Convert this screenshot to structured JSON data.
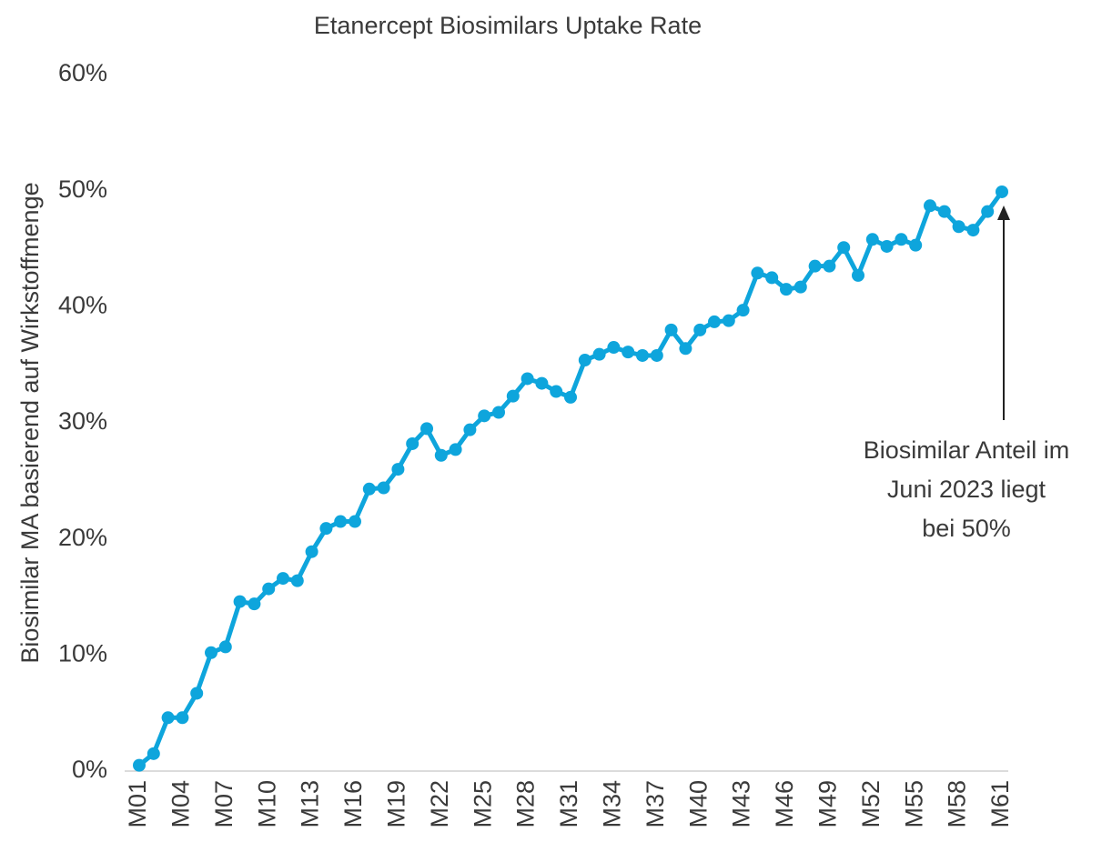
{
  "chart_data": {
    "type": "line",
    "title": "Etanercept Biosimilars Uptake Rate",
    "y_label": "Biosimilar MA basierend auf Wirkstoffmenge",
    "annotation": [
      "Biosimilar Anteil im",
      "Juni 2023 liegt",
      "bei 50%"
    ],
    "categories": [
      "M01",
      null,
      null,
      "M04",
      null,
      null,
      "M07",
      null,
      null,
      "M10",
      null,
      null,
      "M13",
      null,
      null,
      "M16",
      null,
      null,
      "M19",
      null,
      null,
      "M22",
      null,
      null,
      "M25",
      null,
      null,
      "M28",
      null,
      null,
      "M31",
      null,
      null,
      "M34",
      null,
      null,
      "M37",
      null,
      null,
      "M40",
      null,
      null,
      "M43",
      null,
      null,
      "M46",
      null,
      null,
      "M49",
      null,
      null,
      "M52",
      null,
      null,
      "M55",
      null,
      null,
      "M58",
      null,
      null,
      "M61"
    ],
    "series": [
      {
        "color": "#0ea5dc",
        "values": [
          0.5,
          1.5,
          4.6,
          4.6,
          6.7,
          10.2,
          10.7,
          14.6,
          14.4,
          15.7,
          16.6,
          16.4,
          18.9,
          20.9,
          21.5,
          21.5,
          24.3,
          24.4,
          26.0,
          28.2,
          29.5,
          27.2,
          27.7,
          29.4,
          30.6,
          30.9,
          32.3,
          33.8,
          33.4,
          32.7,
          32.2,
          35.4,
          35.9,
          36.5,
          36.1,
          35.8,
          35.8,
          38.0,
          36.4,
          38.0,
          38.7,
          38.8,
          39.7,
          42.9,
          42.5,
          41.5,
          41.7,
          43.5,
          43.5,
          45.1,
          42.7,
          45.8,
          45.2,
          45.8,
          45.3,
          48.7,
          48.2,
          46.9,
          46.6,
          48.2,
          49.9
        ]
      }
    ],
    "ylim": [
      0,
      60
    ],
    "yticks": [
      {
        "value": 0,
        "label": "0%"
      },
      {
        "value": 10,
        "label": "10%"
      },
      {
        "value": 20,
        "label": "20%"
      },
      {
        "value": 30,
        "label": "30%"
      },
      {
        "value": 40,
        "label": "40%"
      },
      {
        "value": 50,
        "label": "50%"
      },
      {
        "value": 60,
        "label": "60%"
      }
    ],
    "grid": false
  }
}
